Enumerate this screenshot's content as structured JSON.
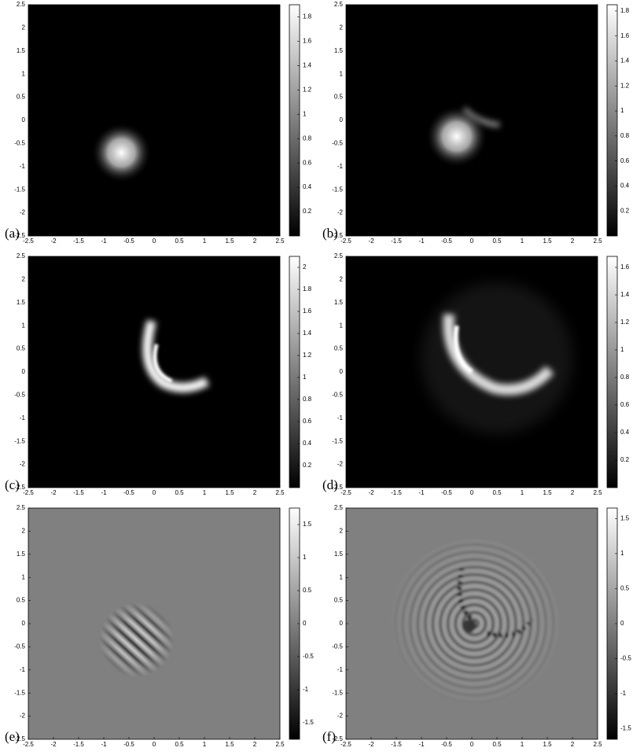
{
  "chart_data": [
    {
      "type": "heatmap",
      "label": "(a)",
      "xlim": [
        -2.5,
        2.5
      ],
      "xticks": [
        -2.5,
        -2,
        -1.5,
        -1,
        -0.5,
        0,
        0.5,
        1,
        1.5,
        2,
        2.5
      ],
      "ylim": [
        -2.5,
        2.5
      ],
      "yticks": [
        -2.5,
        -2,
        -1.5,
        -1,
        -0.5,
        0,
        0.5,
        1,
        1.5,
        2,
        2.5
      ],
      "clim": [
        0,
        1.9
      ],
      "cticks": [
        0.2,
        0.4,
        0.6,
        0.8,
        1,
        1.2,
        1.4,
        1.6,
        1.8
      ]
    },
    {
      "type": "heatmap",
      "label": "(b)",
      "xlim": [
        -2.5,
        2.5
      ],
      "xticks": [
        -2.5,
        -2,
        -1.5,
        -1,
        -0.5,
        0,
        0.5,
        1,
        1.5,
        2,
        2.5
      ],
      "ylim": [
        -2.5,
        2.5
      ],
      "yticks": [
        -2.5,
        -2,
        -1.5,
        -1,
        -0.5,
        0,
        0.5,
        1,
        1.5,
        2,
        2.5
      ],
      "clim": [
        0,
        1.85
      ],
      "cticks": [
        0.2,
        0.4,
        0.6,
        0.8,
        1,
        1.2,
        1.4,
        1.6,
        1.8
      ]
    },
    {
      "type": "heatmap",
      "label": "(c)",
      "xlim": [
        -2.5,
        2.5
      ],
      "xticks": [
        -2.5,
        -2,
        -1.5,
        -1,
        -0.5,
        0,
        0.5,
        1,
        1.5,
        2,
        2.5
      ],
      "ylim": [
        -2.5,
        2.5
      ],
      "yticks": [
        -2.5,
        -2,
        -1.5,
        -1,
        -0.5,
        0,
        0.5,
        1,
        1.5,
        2,
        2.5
      ],
      "clim": [
        0,
        2.1
      ],
      "cticks": [
        0.2,
        0.4,
        0.6,
        0.8,
        1,
        1.2,
        1.4,
        1.6,
        1.8,
        2
      ]
    },
    {
      "type": "heatmap",
      "label": "(d)",
      "xlim": [
        -2.5,
        2.5
      ],
      "xticks": [
        -2.5,
        -2,
        -1.5,
        -1,
        -0.5,
        0,
        0.5,
        1,
        1.5,
        2,
        2.5
      ],
      "ylim": [
        -2.5,
        2.5
      ],
      "yticks": [
        -2.5,
        -2,
        -1.5,
        -1,
        -0.5,
        0,
        0.5,
        1,
        1.5,
        2,
        2.5
      ],
      "clim": [
        0,
        1.68
      ],
      "cticks": [
        0.2,
        0.4,
        0.6,
        0.8,
        1,
        1.2,
        1.4,
        1.6
      ]
    },
    {
      "type": "heatmap",
      "label": "(e)",
      "xlim": [
        -2.5,
        2.5
      ],
      "xticks": [
        -2.5,
        -2,
        -1.5,
        -1,
        -0.5,
        0,
        0.5,
        1,
        1.5,
        2,
        2.5
      ],
      "ylim": [
        -2.5,
        2.5
      ],
      "yticks": [
        -2.5,
        -2,
        -1.5,
        -1,
        -0.5,
        0,
        0.5,
        1,
        1.5,
        2,
        2.5
      ],
      "clim": [
        -1.75,
        1.75
      ],
      "cticks": [
        -1.5,
        -1,
        -0.5,
        0,
        0.5,
        1,
        1.5
      ]
    },
    {
      "type": "heatmap",
      "label": "(f)",
      "xlim": [
        -2.5,
        2.5
      ],
      "xticks": [
        -2.5,
        -2,
        -1.5,
        -1,
        -0.5,
        0,
        0.5,
        1,
        1.5,
        2,
        2.5
      ],
      "ylim": [
        -2.5,
        2.5
      ],
      "yticks": [
        -2.5,
        -2,
        -1.5,
        -1,
        -0.5,
        0,
        0.5,
        1,
        1.5,
        2,
        2.5
      ],
      "clim": [
        -1.65,
        1.65
      ],
      "cticks": [
        -1.5,
        -1,
        -0.5,
        0,
        0.5,
        1,
        1.5
      ]
    }
  ]
}
